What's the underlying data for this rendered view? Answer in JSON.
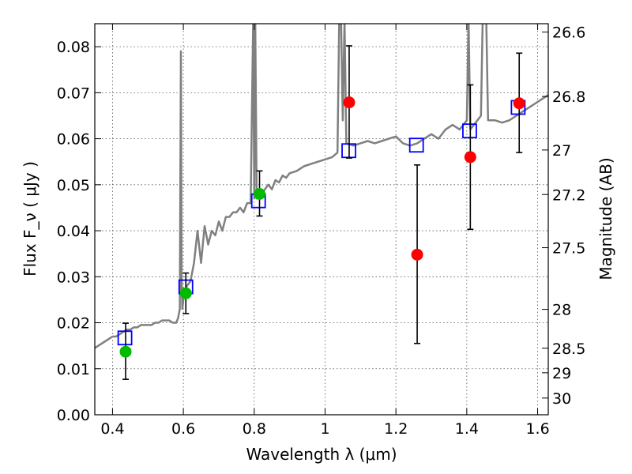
{
  "chart_data": {
    "type": "scatter",
    "title": "",
    "xlabel": "Wavelength  λ (μm)",
    "ylabel": "Flux  F_ν  ( μJy )",
    "ylabel_right": "Magnitude (AB)",
    "xlim": [
      0.35,
      1.63
    ],
    "ylim": [
      0.0,
      0.085
    ],
    "grid": true,
    "x_ticks": [
      0.4,
      0.6,
      0.8,
      1.0,
      1.2,
      1.4,
      1.6
    ],
    "x_tick_labels": [
      "0.4",
      "0.6",
      "0.8",
      "1",
      "1.2",
      "1.4",
      "1.6"
    ],
    "y_ticks": [
      0.0,
      0.01,
      0.02,
      0.03,
      0.04,
      0.05,
      0.06,
      0.07,
      0.08
    ],
    "y_tick_labels": [
      "0.00",
      "0.01",
      "0.02",
      "0.03",
      "0.04",
      "0.05",
      "0.06",
      "0.07",
      "0.08"
    ],
    "right_ticks": [
      {
        "label": "26.6",
        "mag": 26.6
      },
      {
        "label": "26.8",
        "mag": 26.8
      },
      {
        "label": "27",
        "mag": 27.0
      },
      {
        "label": "27.2",
        "mag": 27.2
      },
      {
        "label": "27.5",
        "mag": 27.5
      },
      {
        "label": "28",
        "mag": 28.0
      },
      {
        "label": "28.5",
        "mag": 28.5
      },
      {
        "label": "29",
        "mag": 29.0
      },
      {
        "label": "30",
        "mag": 30.0
      }
    ],
    "colors": {
      "spectrum": "#808080",
      "model_box": "#0000ff",
      "green_points": "#00bb00",
      "red_points": "#ff0000",
      "errorbar": "#000000",
      "grid": "#555555"
    },
    "spectrum": {
      "x": [
        0.35,
        0.36,
        0.37,
        0.38,
        0.39,
        0.4,
        0.41,
        0.42,
        0.43,
        0.44,
        0.45,
        0.46,
        0.47,
        0.48,
        0.49,
        0.5,
        0.51,
        0.52,
        0.53,
        0.54,
        0.55,
        0.56,
        0.57,
        0.58,
        0.585,
        0.59,
        0.593,
        0.595,
        0.597,
        0.6,
        0.605,
        0.61,
        0.62,
        0.63,
        0.64,
        0.65,
        0.66,
        0.67,
        0.68,
        0.69,
        0.7,
        0.71,
        0.72,
        0.73,
        0.74,
        0.75,
        0.76,
        0.77,
        0.78,
        0.79,
        0.797,
        0.8,
        0.803,
        0.807,
        0.81,
        0.82,
        0.83,
        0.84,
        0.85,
        0.86,
        0.87,
        0.88,
        0.89,
        0.9,
        0.92,
        0.94,
        0.96,
        0.98,
        1.0,
        1.02,
        1.035,
        1.04,
        1.045,
        1.05,
        1.055,
        1.06,
        1.08,
        1.1,
        1.12,
        1.14,
        1.16,
        1.18,
        1.2,
        1.22,
        1.24,
        1.26,
        1.28,
        1.3,
        1.32,
        1.34,
        1.36,
        1.38,
        1.4,
        1.405,
        1.41,
        1.42,
        1.43,
        1.44,
        1.445,
        1.45,
        1.455,
        1.46,
        1.48,
        1.5,
        1.52,
        1.54,
        1.56,
        1.58,
        1.6,
        1.62,
        1.63
      ],
      "y": [
        0.0145,
        0.015,
        0.0155,
        0.016,
        0.0165,
        0.017,
        0.017,
        0.0175,
        0.018,
        0.0185,
        0.0185,
        0.019,
        0.019,
        0.0195,
        0.0195,
        0.0195,
        0.0195,
        0.02,
        0.02,
        0.0205,
        0.0205,
        0.0205,
        0.02,
        0.02,
        0.021,
        0.023,
        0.079,
        0.03,
        0.023,
        0.025,
        0.027,
        0.028,
        0.029,
        0.033,
        0.04,
        0.033,
        0.041,
        0.037,
        0.04,
        0.039,
        0.042,
        0.04,
        0.043,
        0.043,
        0.044,
        0.044,
        0.045,
        0.044,
        0.046,
        0.046,
        0.086,
        0.047,
        0.086,
        0.047,
        0.047,
        0.048,
        0.049,
        0.05,
        0.049,
        0.051,
        0.0505,
        0.052,
        0.0515,
        0.0525,
        0.053,
        0.054,
        0.0545,
        0.055,
        0.0555,
        0.056,
        0.057,
        0.086,
        0.086,
        0.064,
        0.086,
        0.059,
        0.0585,
        0.059,
        0.0595,
        0.059,
        0.0595,
        0.06,
        0.0605,
        0.059,
        0.0585,
        0.059,
        0.06,
        0.061,
        0.06,
        0.062,
        0.063,
        0.062,
        0.064,
        0.086,
        0.062,
        0.063,
        0.064,
        0.065,
        0.086,
        0.086,
        0.086,
        0.064,
        0.064,
        0.0635,
        0.064,
        0.065,
        0.066,
        0.067,
        0.068,
        0.069,
        0.0695
      ]
    },
    "model_boxes": [
      {
        "x": 0.435,
        "y": 0.0167
      },
      {
        "x": 0.607,
        "y": 0.0278
      },
      {
        "x": 0.812,
        "y": 0.0465
      },
      {
        "x": 1.067,
        "y": 0.0574
      },
      {
        "x": 1.258,
        "y": 0.0586
      },
      {
        "x": 1.408,
        "y": 0.0617
      },
      {
        "x": 1.545,
        "y": 0.0668
      }
    ],
    "green_points": [
      {
        "x": 0.437,
        "y": 0.0137,
        "err_lo": 0.006,
        "err_hi": 0.0062
      },
      {
        "x": 0.607,
        "y": 0.0264,
        "err_lo": 0.0044,
        "err_hi": 0.0044
      },
      {
        "x": 0.815,
        "y": 0.048,
        "err_lo": 0.0048,
        "err_hi": 0.005
      }
    ],
    "red_points": [
      {
        "x": 1.068,
        "y": 0.0679,
        "err_lo": 0.0121,
        "err_hi": 0.0123
      },
      {
        "x": 1.26,
        "y": 0.0348,
        "err_lo": 0.0193,
        "err_hi": 0.0195
      },
      {
        "x": 1.41,
        "y": 0.056,
        "err_lo": 0.0157,
        "err_hi": 0.0157
      },
      {
        "x": 1.548,
        "y": 0.0677,
        "err_lo": 0.0107,
        "err_hi": 0.0109
      }
    ]
  }
}
